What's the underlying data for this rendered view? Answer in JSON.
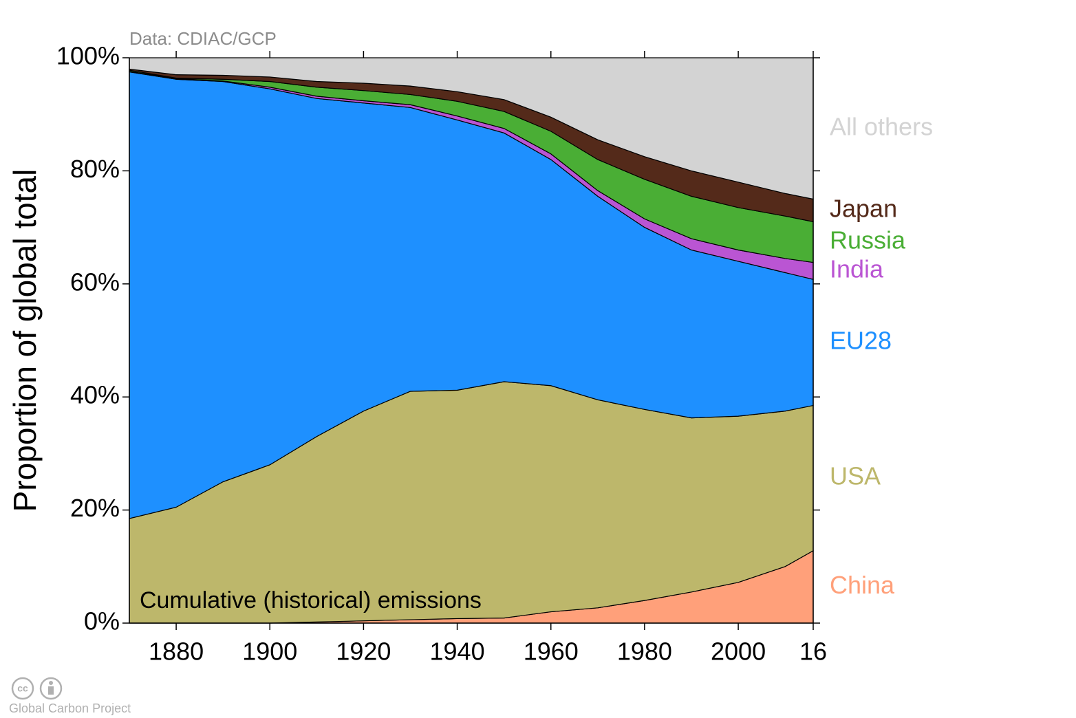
{
  "chart_data": {
    "type": "stacked_area",
    "source_note": "Data: CDIAC/GCP",
    "annotation": "Cumulative (historical) emissions",
    "ylabel": "Proportion of global total",
    "footer": "Global Carbon Project",
    "x": [
      1870,
      1880,
      1890,
      1900,
      1910,
      1920,
      1930,
      1940,
      1950,
      1960,
      1970,
      1980,
      1990,
      2000,
      2010,
      2016
    ],
    "series": [
      {
        "name": "China",
        "color": "#ffa07a",
        "values": [
          0,
          0,
          0,
          0,
          0.2,
          0.4,
          0.6,
          0.8,
          0.9,
          2,
          2.7,
          4,
          5.5,
          7.2,
          10,
          12.8
        ]
      },
      {
        "name": "USA",
        "color": "#bdb76b",
        "values": [
          18.5,
          20.5,
          25,
          28,
          32.8,
          37.1,
          40.4,
          40.4,
          41.8,
          40,
          36.8,
          33.8,
          30.8,
          29.4,
          27.5,
          25.7
        ]
      },
      {
        "name": "EU28",
        "color": "#1e90ff",
        "values": [
          79,
          75.7,
          70.8,
          66.5,
          59.8,
          54.5,
          50.2,
          47.8,
          44,
          40,
          36,
          32.2,
          29.7,
          27.4,
          24.5,
          22.3
        ]
      },
      {
        "name": "India",
        "color": "#ba55d3",
        "values": [
          0.1,
          0.1,
          0.1,
          0.3,
          0.4,
          0.4,
          0.5,
          0.7,
          0.8,
          1,
          1,
          1.5,
          2,
          2,
          2.5,
          3
        ]
      },
      {
        "name": "Russia",
        "color": "#4aae35",
        "values": [
          0.2,
          0.1,
          0.3,
          1,
          1.6,
          1.8,
          1.8,
          2.6,
          3,
          4,
          5.5,
          7,
          7.5,
          7.5,
          7.5,
          7.2
        ]
      },
      {
        "name": "Japan",
        "color": "#542a1a",
        "values": [
          0.2,
          0.6,
          0.7,
          0.8,
          1,
          1.3,
          1.5,
          1.7,
          2.1,
          2.5,
          3.5,
          4,
          4.5,
          4.5,
          4,
          4
        ]
      },
      {
        "name": "All others",
        "color": "#d3d3d3",
        "values": [
          2,
          3,
          3.1,
          3.4,
          4.2,
          4.5,
          5,
          6,
          7.4,
          10.5,
          14.5,
          17.5,
          20,
          22,
          24,
          25
        ]
      }
    ],
    "xlim": [
      1870,
      2016
    ],
    "xticks": [
      1880,
      1900,
      1920,
      1940,
      1960,
      1980,
      2000,
      {
        "value": 2016,
        "label": "16"
      }
    ],
    "ylim": [
      0,
      100
    ],
    "yticks": [
      {
        "value": 0,
        "label": "0%"
      },
      {
        "value": 20,
        "label": "20%"
      },
      {
        "value": 40,
        "label": "40%"
      },
      {
        "value": 60,
        "label": "60%"
      },
      {
        "value": 80,
        "label": "80%"
      },
      {
        "value": 100,
        "label": "100%"
      }
    ]
  }
}
